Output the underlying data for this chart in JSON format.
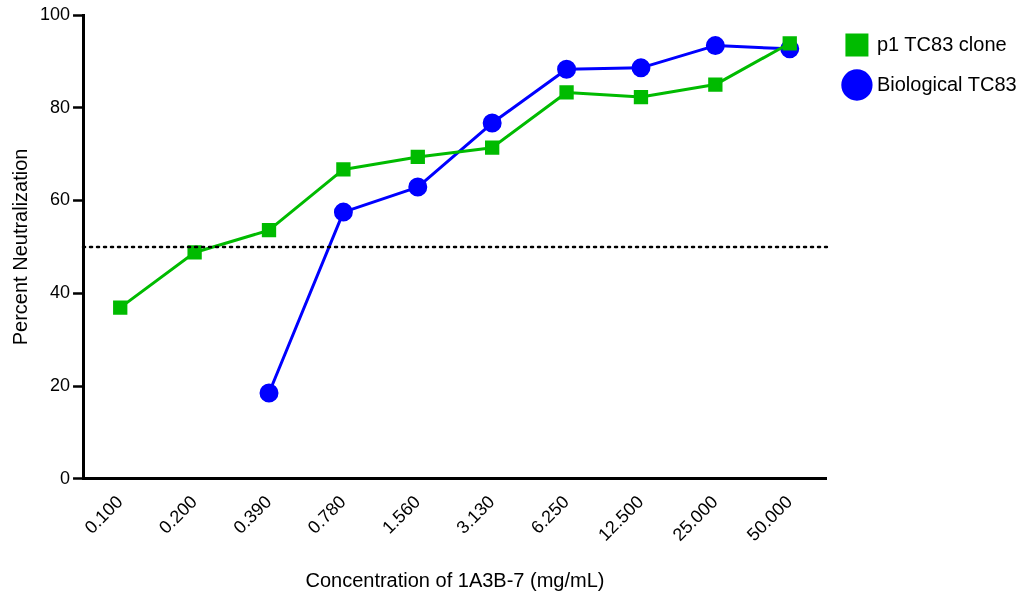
{
  "chart_data": {
    "type": "line",
    "xlabel": "Concentration of 1A3B-7 (mg/mL)",
    "ylabel": "Percent Neutralization",
    "categories": [
      "0.100",
      "0.200",
      "0.390",
      "0.780",
      "1.560",
      "3.130",
      "6.250",
      "12.500",
      "25.000",
      "50.000"
    ],
    "series": [
      {
        "name": "Biological TC83",
        "color": "#0000ff",
        "marker": "circle",
        "values": [
          null,
          null,
          18.5,
          57.5,
          62.9,
          76.7,
          88.3,
          88.6,
          93.4,
          92.7
        ]
      },
      {
        "name": "p1 TC83 clone",
        "color": "#00bb00",
        "marker": "square",
        "values": [
          36.9,
          48.8,
          53.6,
          66.7,
          69.4,
          71.4,
          83.3,
          82.3,
          85,
          93.9
        ]
      }
    ],
    "ylim": [
      0,
      100
    ],
    "yticks": [
      0,
      20,
      40,
      60,
      80,
      100
    ],
    "grid": false,
    "legend": "top right",
    "ref_lines": [
      {
        "axis": "y",
        "value": 50,
        "color": "#000000",
        "line_style": "dotted"
      }
    ]
  }
}
